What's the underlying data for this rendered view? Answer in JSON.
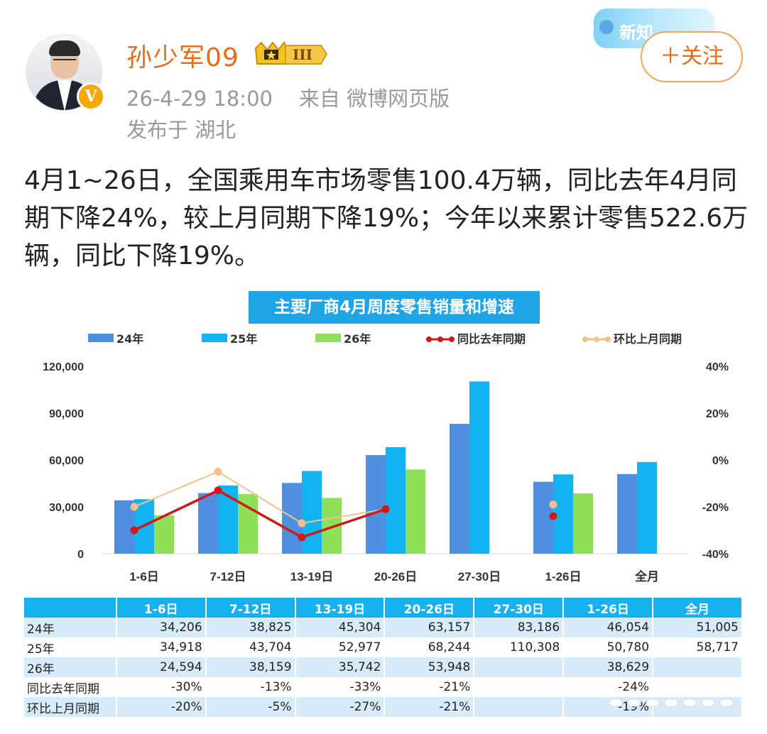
{
  "post": {
    "username": "孙少军09",
    "level_badge": "III",
    "meta_time": "26-4-29 18:00",
    "meta_source": "来自 微博网页版",
    "location": "发布于 湖北",
    "follow_label": "＋关注",
    "banner_text": "新知",
    "body_text": "4月1~26日，全国乘用车市场零售100.4万辆，同比去年4月同期下降24%，较上月同期下降19%；今年以来累计零售522.6万辆，同比下降19%。"
  },
  "colors": {
    "s24": "#4f8fe0",
    "s25": "#12b3f0",
    "s26": "#8ee05a",
    "yoy": "#d01a1a",
    "mom": "#f6c08a",
    "accent": "#e86b17"
  },
  "chart_data": {
    "type": "bar",
    "title": "主要厂商4月周度零售销量和增速",
    "categories": [
      "1-6日",
      "7-12日",
      "13-19日",
      "20-26日",
      "27-30日",
      "1-26日",
      "全月"
    ],
    "series": [
      {
        "name": "24年",
        "values": [
          34206,
          38825,
          45304,
          63157,
          83186,
          46054,
          51005
        ]
      },
      {
        "name": "25年",
        "values": [
          34918,
          43704,
          52977,
          68244,
          110308,
          50780,
          58717
        ]
      },
      {
        "name": "26年",
        "values": [
          24594,
          38159,
          35742,
          53948,
          null,
          38629,
          null
        ]
      }
    ],
    "lines": [
      {
        "name": "同比去年同期",
        "axis": "right",
        "values": [
          -30,
          -13,
          -33,
          -21,
          null,
          -24,
          null
        ],
        "labels": [
          "-30%",
          "-13%",
          "-33%",
          "-21%",
          "",
          "-24%",
          ""
        ]
      },
      {
        "name": "环比上月同期",
        "axis": "right",
        "values": [
          -20,
          -5,
          -27,
          -21,
          null,
          -19,
          null
        ],
        "labels": [
          "-20%",
          "-5%",
          "-27%",
          "-21%",
          "",
          "-19%",
          ""
        ]
      }
    ],
    "ylim": [
      0,
      120000
    ],
    "y_ticks": [
      "120,000",
      "90,000",
      "60,000",
      "30,000",
      "0"
    ],
    "y2lim": [
      -40,
      40
    ],
    "y2_ticks": [
      "40%",
      "20%",
      "0%",
      "-20%",
      "-40%"
    ],
    "legend_position": "top",
    "grid": false
  },
  "table": {
    "headers": [
      "",
      "1-6日",
      "7-12日",
      "13-19日",
      "20-26日",
      "27-30日",
      "1-26日",
      "全月"
    ],
    "rows": [
      [
        "24年",
        "34,206",
        "38,825",
        "45,304",
        "63,157",
        "83,186",
        "46,054",
        "51,005"
      ],
      [
        "25年",
        "34,918",
        "43,704",
        "52,977",
        "68,244",
        "110,308",
        "50,780",
        "58,717"
      ],
      [
        "26年",
        "24,594",
        "38,159",
        "35,742",
        "53,948",
        "",
        "38,629",
        ""
      ],
      [
        "同比去年同期",
        "-30%",
        "-13%",
        "-33%",
        "-21%",
        "",
        "-24%",
        ""
      ],
      [
        "环比上月同期",
        "-20%",
        "-5%",
        "-27%",
        "-21%",
        "",
        "-19%",
        ""
      ]
    ]
  }
}
